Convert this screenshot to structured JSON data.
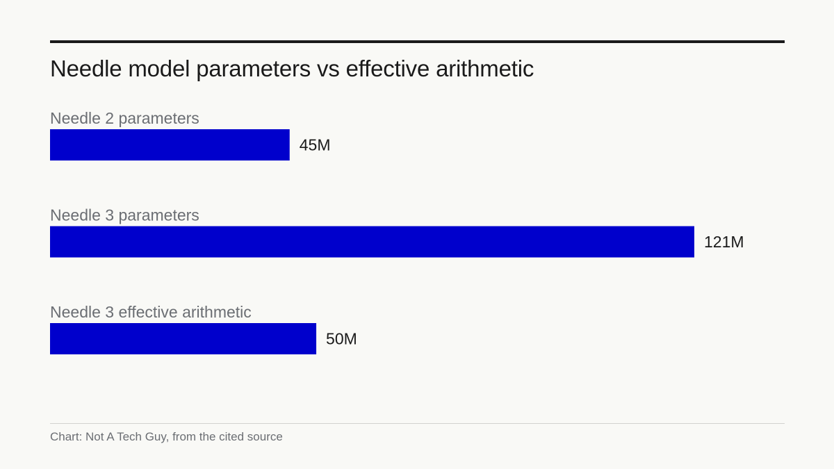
{
  "chart_data": {
    "type": "bar",
    "orientation": "horizontal",
    "title": "Needle model parameters vs effective arithmetic",
    "categories": [
      "Needle 2 parameters",
      "Needle 3 parameters",
      "Needle 3 effective arithmetic"
    ],
    "values": [
      45,
      121,
      50
    ],
    "value_labels": [
      "45M",
      "121M",
      "50M"
    ],
    "unit": "M",
    "xlim": [
      0,
      121
    ],
    "grid": false,
    "legend": "none",
    "bar_color": "#0000cc",
    "source": "Chart: Not A Tech Guy, from the cited source"
  },
  "colors": {
    "background": "#f9f9f6",
    "bar": "#0000cc",
    "title_text": "#1a1a1a",
    "label_text": "#6b6e73"
  }
}
